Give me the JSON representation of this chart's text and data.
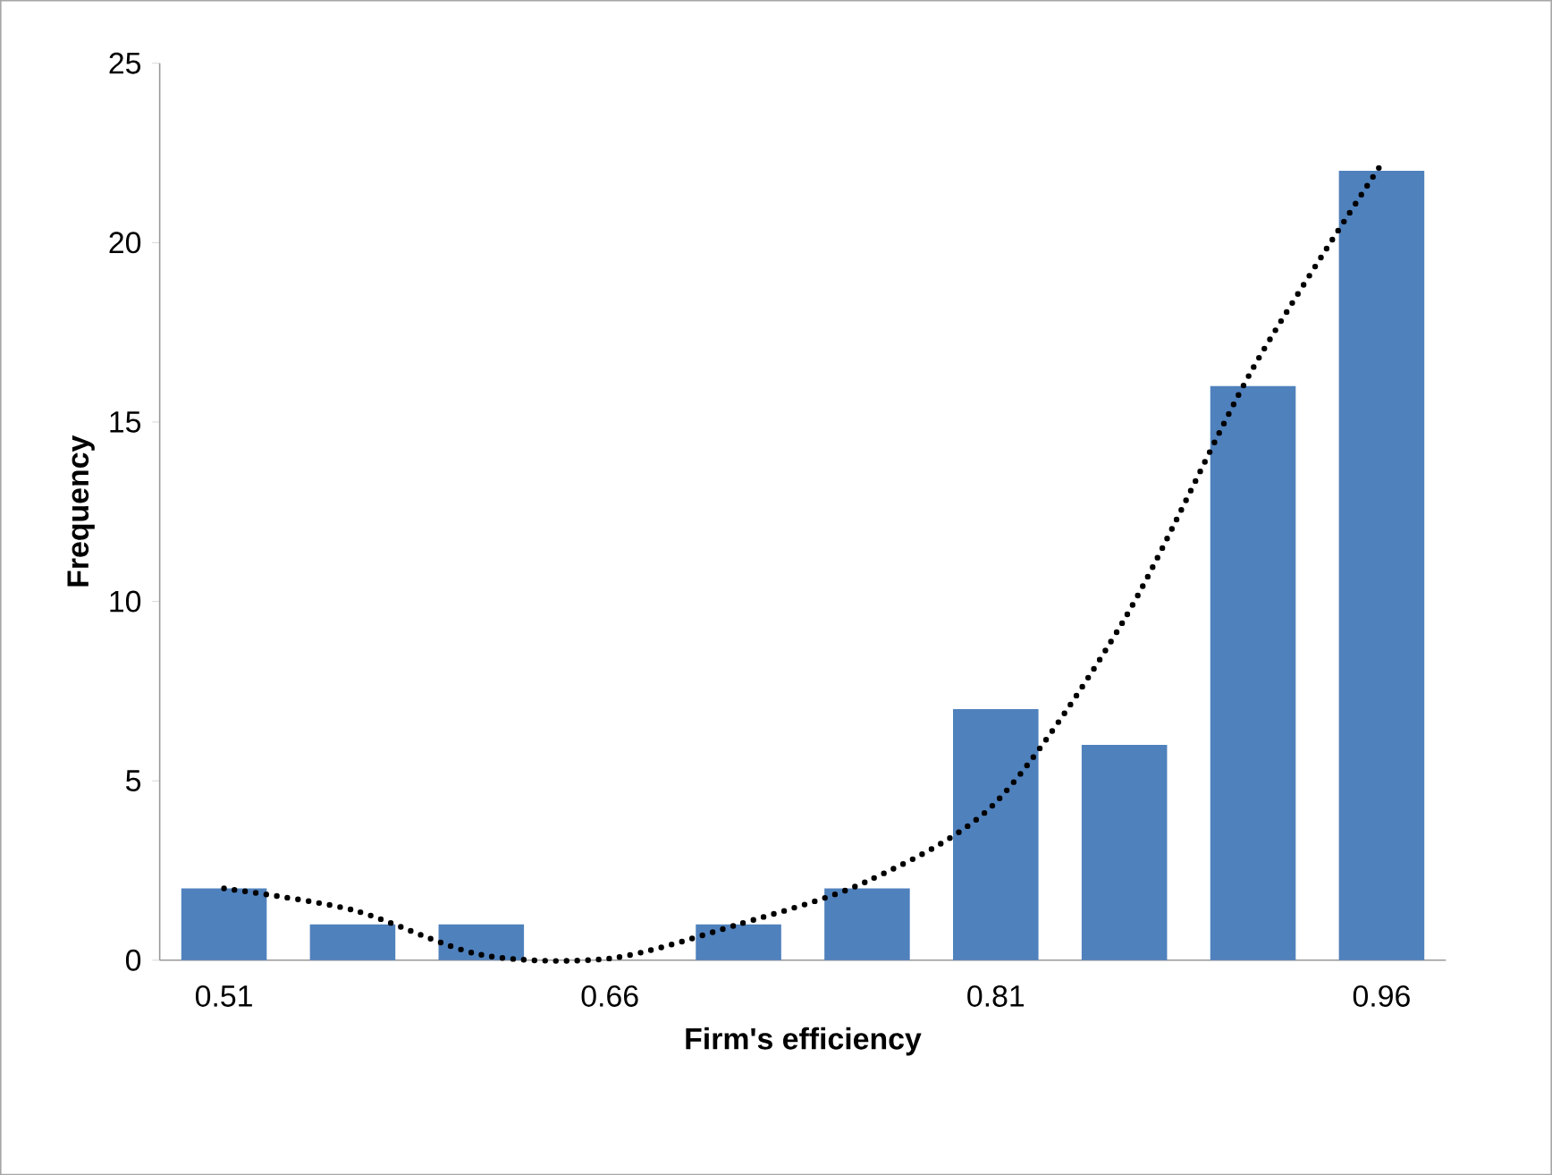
{
  "chart_data": {
    "type": "bar",
    "xlabel": "Firm's efficiency",
    "ylabel": "Frequency",
    "categories": [
      "0.51",
      null,
      null,
      "0.66",
      null,
      null,
      "0.81",
      null,
      null,
      "0.96"
    ],
    "series": [
      {
        "color": "#4f81bd",
        "values": [
          2,
          1,
          1,
          0,
          1,
          2,
          7,
          6,
          16,
          22
        ]
      },
      {
        "type": "line",
        "color": "#000000",
        "line_style": "dotted",
        "values": [
          2.0,
          1.4,
          0.15,
          0.05,
          1.0,
          2.2,
          4.4,
          9.5,
          16.5,
          22.2
        ]
      }
    ],
    "ylim": [
      0,
      25
    ],
    "yticks": [
      0,
      5,
      10,
      15,
      20,
      25
    ]
  }
}
